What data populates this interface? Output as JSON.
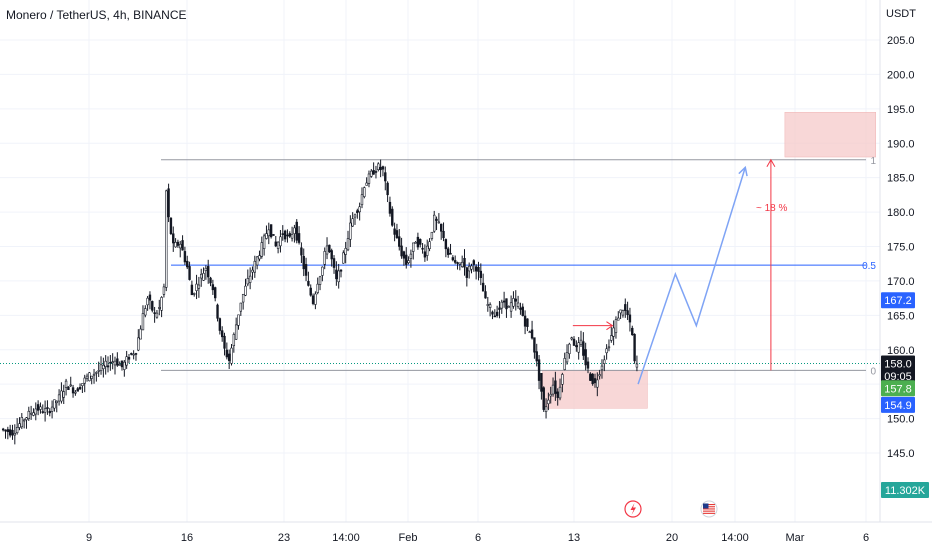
{
  "header": {
    "title": "Monero / TetherUS, 4h, BINANCE"
  },
  "axis": {
    "currency_label": "USDT"
  },
  "colors": {
    "background": "#ffffff",
    "grid": "#f0f3fa",
    "candle": "#131722",
    "fib_line": "#9598a1",
    "mid_line": "#2962ff",
    "current_price_line": "#089981",
    "projection_path": "#7fa4f5",
    "measure_line": "#f23645",
    "zone_fill": "#f6caca",
    "badge_blue": "#2962ff",
    "badge_dark": "#131722",
    "badge_green": "#4caf50",
    "badge_teal": "#26a69a"
  },
  "chart_data": {
    "type": "candlestick",
    "title": "Monero / TetherUS, 4h, BINANCE",
    "y_unit": "USDT",
    "ylim": [
      140,
      210
    ],
    "y_ticks": [
      145.0,
      150.0,
      155.0,
      160.0,
      165.0,
      170.0,
      175.0,
      180.0,
      185.0,
      190.0,
      195.0,
      200.0,
      205.0
    ],
    "x_ticks": [
      "9",
      "16",
      "23",
      "14:00",
      "Feb",
      "6",
      "13",
      "20",
      "14:00",
      "Mar",
      "6"
    ],
    "grid": true,
    "price_path": [
      {
        "t": 0,
        "p": 148.5
      },
      {
        "t": 5,
        "p": 148.0
      },
      {
        "t": 10,
        "p": 150.0
      },
      {
        "t": 15,
        "p": 151.5
      },
      {
        "t": 20,
        "p": 151.0
      },
      {
        "t": 25,
        "p": 153.0
      },
      {
        "t": 28,
        "p": 155.0
      },
      {
        "t": 32,
        "p": 154.0
      },
      {
        "t": 37,
        "p": 156.0
      },
      {
        "t": 42,
        "p": 157.0
      },
      {
        "t": 46,
        "p": 158.0
      },
      {
        "t": 49,
        "p": 158.5
      },
      {
        "t": 52,
        "p": 157.5
      },
      {
        "t": 55,
        "p": 159.0
      },
      {
        "t": 58,
        "p": 160.0
      },
      {
        "t": 61,
        "p": 165.0
      },
      {
        "t": 63,
        "p": 167.5
      },
      {
        "t": 66,
        "p": 165.0
      },
      {
        "t": 68,
        "p": 166.0
      },
      {
        "t": 70,
        "p": 169.0
      },
      {
        "t": 71,
        "p": 183.0
      },
      {
        "t": 72,
        "p": 179.0
      },
      {
        "t": 74,
        "p": 175.0
      },
      {
        "t": 77,
        "p": 175.5
      },
      {
        "t": 80,
        "p": 172.0
      },
      {
        "t": 82,
        "p": 168.0
      },
      {
        "t": 85,
        "p": 170.0
      },
      {
        "t": 88,
        "p": 172.0
      },
      {
        "t": 91,
        "p": 169.0
      },
      {
        "t": 94,
        "p": 163.0
      },
      {
        "t": 96,
        "p": 160.0
      },
      {
        "t": 98,
        "p": 158.5
      },
      {
        "t": 100,
        "p": 162.0
      },
      {
        "t": 103,
        "p": 167.0
      },
      {
        "t": 106,
        "p": 170.0
      },
      {
        "t": 109,
        "p": 172.5
      },
      {
        "t": 112,
        "p": 175.0
      },
      {
        "t": 115,
        "p": 178.0
      },
      {
        "t": 118,
        "p": 175.0
      },
      {
        "t": 121,
        "p": 177.0
      },
      {
        "t": 124,
        "p": 176.0
      },
      {
        "t": 126,
        "p": 178.0
      },
      {
        "t": 128,
        "p": 175.0
      },
      {
        "t": 130,
        "p": 172.0
      },
      {
        "t": 132,
        "p": 169.0
      },
      {
        "t": 134,
        "p": 167.0
      },
      {
        "t": 136,
        "p": 170.0
      },
      {
        "t": 138,
        "p": 172.0
      },
      {
        "t": 140,
        "p": 175.5
      },
      {
        "t": 142,
        "p": 173.0
      },
      {
        "t": 144,
        "p": 170.0
      },
      {
        "t": 146,
        "p": 172.0
      },
      {
        "t": 148,
        "p": 175.0
      },
      {
        "t": 150,
        "p": 178.0
      },
      {
        "t": 152,
        "p": 180.0
      },
      {
        "t": 154,
        "p": 181.0
      },
      {
        "t": 156,
        "p": 184.0
      },
      {
        "t": 158,
        "p": 185.0
      },
      {
        "t": 160,
        "p": 186.0
      },
      {
        "t": 162,
        "p": 186.5
      },
      {
        "t": 164,
        "p": 186.0
      },
      {
        "t": 166,
        "p": 182.0
      },
      {
        "t": 168,
        "p": 178.0
      },
      {
        "t": 170,
        "p": 176.0
      },
      {
        "t": 172,
        "p": 174.0
      },
      {
        "t": 174,
        "p": 172.5
      },
      {
        "t": 176,
        "p": 174.0
      },
      {
        "t": 178,
        "p": 176.0
      },
      {
        "t": 180,
        "p": 175.0
      },
      {
        "t": 182,
        "p": 174.0
      },
      {
        "t": 184,
        "p": 176.0
      },
      {
        "t": 186,
        "p": 179.0
      },
      {
        "t": 188,
        "p": 178.0
      },
      {
        "t": 190,
        "p": 176.0
      },
      {
        "t": 192,
        "p": 174.0
      },
      {
        "t": 194,
        "p": 173.0
      },
      {
        "t": 196,
        "p": 172.0
      },
      {
        "t": 198,
        "p": 173.0
      },
      {
        "t": 200,
        "p": 171.0
      },
      {
        "t": 202,
        "p": 172.5
      },
      {
        "t": 204,
        "p": 172.0
      },
      {
        "t": 206,
        "p": 170.0
      },
      {
        "t": 208,
        "p": 167.0
      },
      {
        "t": 210,
        "p": 166.0
      },
      {
        "t": 212,
        "p": 165.0
      },
      {
        "t": 214,
        "p": 166.0
      },
      {
        "t": 216,
        "p": 167.0
      },
      {
        "t": 218,
        "p": 166.0
      },
      {
        "t": 220,
        "p": 167.0
      },
      {
        "t": 222,
        "p": 166.5
      },
      {
        "t": 224,
        "p": 165.0
      },
      {
        "t": 226,
        "p": 163.0
      },
      {
        "t": 228,
        "p": 162.0
      },
      {
        "t": 230,
        "p": 158.0
      },
      {
        "t": 232,
        "p": 154.0
      },
      {
        "t": 233,
        "p": 151.0
      },
      {
        "t": 235,
        "p": 153.0
      },
      {
        "t": 237,
        "p": 155.0
      },
      {
        "t": 239,
        "p": 153.0
      },
      {
        "t": 241,
        "p": 157.0
      },
      {
        "t": 243,
        "p": 160.0
      },
      {
        "t": 245,
        "p": 162.0
      },
      {
        "t": 247,
        "p": 160.0
      },
      {
        "t": 249,
        "p": 161.0
      },
      {
        "t": 251,
        "p": 158.0
      },
      {
        "t": 253,
        "p": 156.0
      },
      {
        "t": 255,
        "p": 155.0
      },
      {
        "t": 257,
        "p": 157.0
      },
      {
        "t": 259,
        "p": 159.0
      },
      {
        "t": 261,
        "p": 161.0
      },
      {
        "t": 263,
        "p": 163.0
      },
      {
        "t": 265,
        "p": 165.0
      },
      {
        "t": 267,
        "p": 166.0
      },
      {
        "t": 269,
        "p": 165.0
      },
      {
        "t": 271,
        "p": 162.0
      },
      {
        "t": 272,
        "p": 158.0
      },
      {
        "t": 273,
        "p": 157.8
      }
    ],
    "fib_levels": [
      {
        "label": "1",
        "price": 187.6
      },
      {
        "label": "0.5",
        "price": 172.3
      },
      {
        "label": "0",
        "price": 157.0
      }
    ],
    "current_price_line": 158.0,
    "price_badges": [
      {
        "value": "167.2",
        "price": 167.2,
        "color": "badge_blue"
      },
      {
        "value": "158.0",
        "price": 158.0,
        "color": "badge_dark"
      },
      {
        "value": "09:05",
        "price": 156.2,
        "color": "badge_dark"
      },
      {
        "value": "157.8",
        "price": 154.4,
        "color": "badge_green"
      },
      {
        "value": "154.9",
        "price": 152.0,
        "color": "badge_blue"
      }
    ],
    "volume_badge": {
      "value": "11.302K"
    },
    "annotations": [
      {
        "type": "text",
        "text": "~ 18 %"
      },
      {
        "type": "zone",
        "name": "support-zone",
        "t0": 232,
        "t1": 277,
        "price_low": 151.5,
        "price_high": 157.0
      },
      {
        "type": "zone",
        "name": "target-zone",
        "t0": 336,
        "t1": 375,
        "price_low": 188.0,
        "price_high": 194.5
      },
      {
        "type": "arrow",
        "name": "small-red-arrow",
        "t0": 245,
        "t1": 262,
        "price": 163.5
      },
      {
        "type": "measure",
        "name": "measure-arrow",
        "t": 330,
        "price_low": 157.0,
        "price_high": 187.6
      },
      {
        "type": "path",
        "name": "projection-path",
        "points": [
          {
            "t": 273,
            "p": 155.0
          },
          {
            "t": 289,
            "p": 171.0
          },
          {
            "t": 298,
            "p": 163.5
          },
          {
            "t": 319,
            "p": 186.5
          }
        ]
      }
    ],
    "event_icons": [
      "lightning-icon",
      "us-flag-icon"
    ]
  }
}
